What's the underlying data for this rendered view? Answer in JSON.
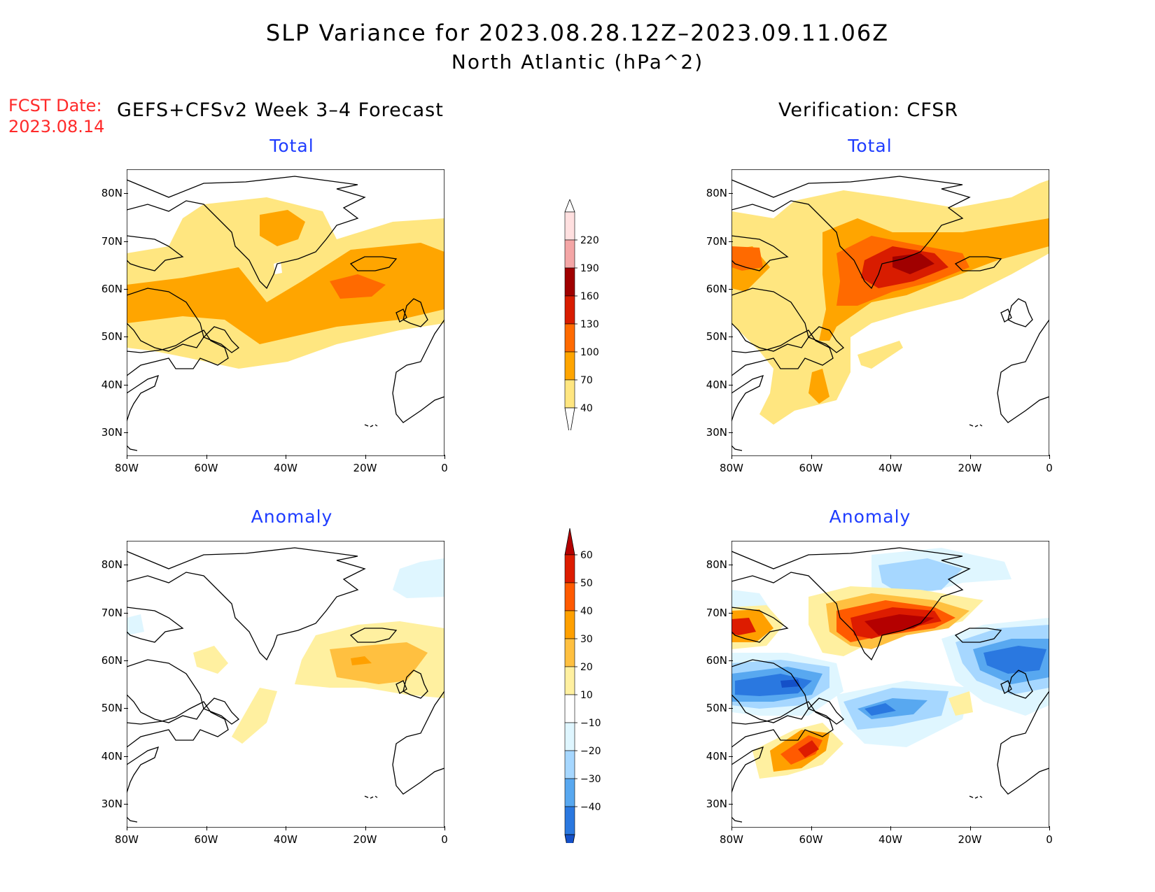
{
  "title": {
    "line1": "SLP Variance for 2023.08.28.12Z–2023.09.11.06Z",
    "line2": "North Atlantic (hPa^2)"
  },
  "fcst_date": {
    "label": "FCST Date:",
    "value": "2023.08.14"
  },
  "columns": {
    "left": "GEFS+CFSv2 Week 3–4 Forecast",
    "right": "Verification: CFSR"
  },
  "panels": {
    "fc_total": "Total",
    "ver_total": "Total",
    "fc_anom": "Anomaly",
    "ver_anom": "Anomaly"
  },
  "axes": {
    "lat_labels": [
      "80N",
      "70N",
      "60N",
      "50N",
      "40N",
      "30N"
    ],
    "lon_labels": [
      "80W",
      "60W",
      "40W",
      "20W",
      "0"
    ]
  },
  "colorbars": {
    "total": {
      "levels": [
        "220",
        "190",
        "160",
        "130",
        "100",
        "70",
        "40"
      ],
      "colors": [
        "#ffe0e0",
        "#f4a6a6",
        "#a00000",
        "#d81c00",
        "#ff6a00",
        "#ffa500",
        "#ffe680"
      ]
    },
    "anomaly": {
      "levels": [
        "60",
        "50",
        "40",
        "30",
        "20",
        "10",
        "−10",
        "−20",
        "−30",
        "−40"
      ],
      "colors": [
        "#b40000",
        "#dd1c00",
        "#ff5a00",
        "#ffa000",
        "#ffc040",
        "#fff0a0",
        "#ffffff",
        "#dff6ff",
        "#a6d7ff",
        "#58a8f0",
        "#2a78e0",
        "#1450c8"
      ]
    }
  },
  "colors": {
    "title_red": "#ff2a2a",
    "subtitle_blue": "#1e3cff"
  }
}
